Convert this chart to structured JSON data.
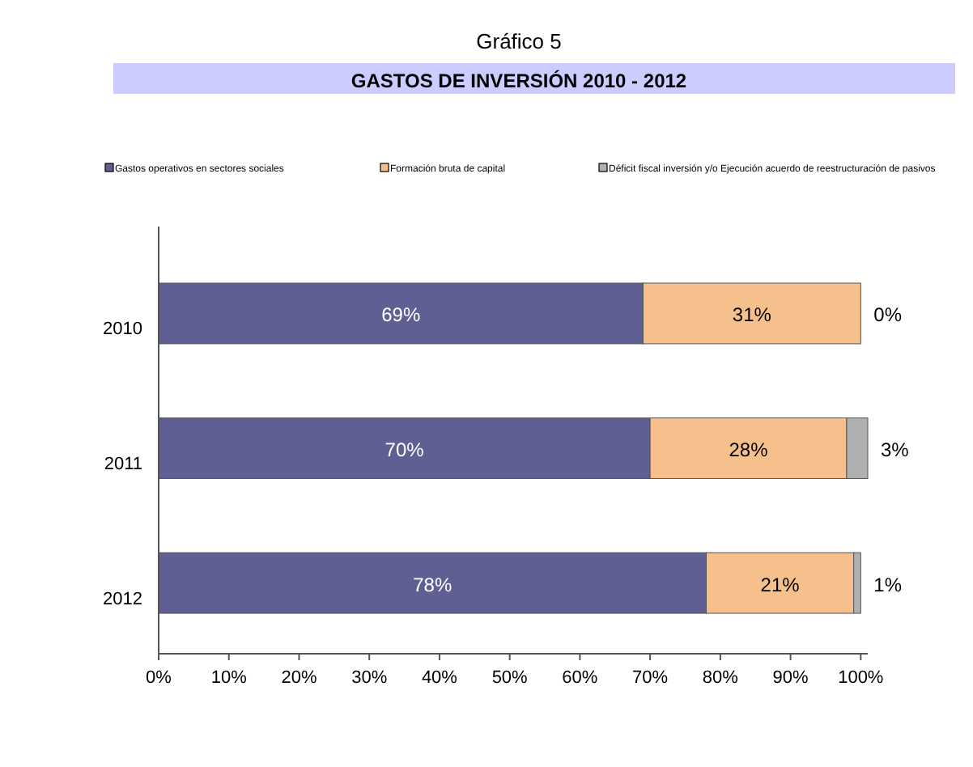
{
  "chart_data": {
    "type": "bar",
    "title": "Gráfico 5",
    "subtitle": "GASTOS DE INVERSIÓN 2010 - 2012",
    "orientation": "horizontal",
    "stacked": true,
    "categories": [
      "2010",
      "2011",
      "2012"
    ],
    "series": [
      {
        "name": "Gastos operativos en sectores sociales",
        "color": "#5f5f94",
        "values": [
          69,
          70,
          78
        ],
        "value_labels": [
          "69%",
          "70%",
          "78%"
        ]
      },
      {
        "name": "Formación bruta de capital",
        "color": "#f5c08c",
        "values": [
          31,
          28,
          21
        ],
        "value_labels": [
          "31%",
          "28%",
          "21%"
        ]
      },
      {
        "name": "Déficit fiscal inversión y/o Ejecución acuerdo de reestructuración de pasivos",
        "color": "#b0b0b0",
        "values": [
          0,
          3,
          1
        ],
        "value_labels": [
          "0%",
          "3%",
          "1%"
        ]
      }
    ],
    "xlim": [
      0,
      101
    ],
    "xticks": [
      {
        "value": 0,
        "label": "0%"
      },
      {
        "value": 10,
        "label": "10%"
      },
      {
        "value": 20,
        "label": "20%"
      },
      {
        "value": 30,
        "label": "30%"
      },
      {
        "value": 40,
        "label": "40%"
      },
      {
        "value": 50,
        "label": "50%"
      },
      {
        "value": 60,
        "label": "60%"
      },
      {
        "value": 70,
        "label": "70%"
      },
      {
        "value": 80,
        "label": "80%"
      },
      {
        "value": 90,
        "label": "90%"
      },
      {
        "value": 100,
        "label": "100%"
      }
    ],
    "legend": "top",
    "grid": false
  }
}
